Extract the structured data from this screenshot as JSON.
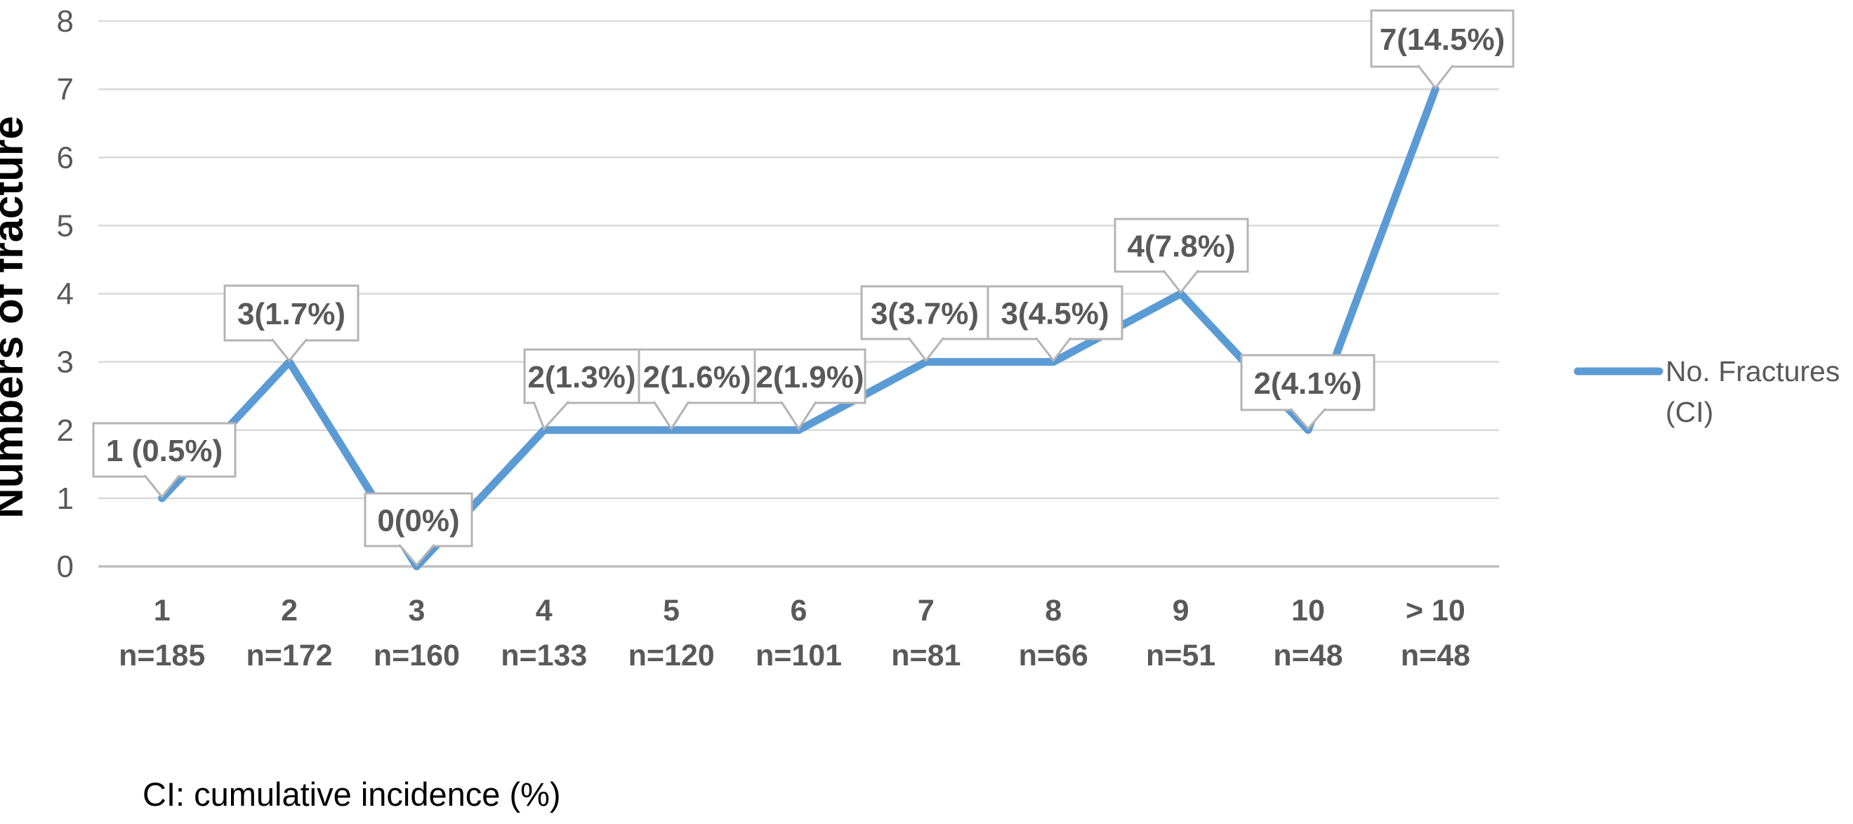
{
  "footnote": "CI: cumulative incidence (%)",
  "chart_data": {
    "type": "line",
    "title": "",
    "xlabel": "",
    "ylabel": "Numbers of fracture",
    "ylim": [
      0,
      8
    ],
    "yticks": [
      8,
      7,
      6,
      5,
      4,
      3,
      2,
      1,
      0
    ],
    "grid": true,
    "categories": [
      "1",
      "2",
      "3",
      "4",
      "5",
      "6",
      "7",
      "8",
      "9",
      "10",
      "> 10"
    ],
    "category_sublabels": [
      "n=185",
      "n=172",
      "n=160",
      "n=133",
      "n=120",
      "n=101",
      "n=81",
      "n=66",
      "n=51",
      "n=48",
      "n=48"
    ],
    "series": [
      {
        "name": "No. Fractures (CI)",
        "values": [
          1,
          3,
          0,
          2,
          2,
          2,
          3,
          3,
          4,
          2,
          7
        ]
      }
    ],
    "data_labels": [
      "1 (0.5%)",
      "3(1.7%)",
      "0(0%)",
      "2(1.3%)",
      "2(1.6%)",
      "2(1.9%)",
      "3(3.7%)",
      "3(4.5%)",
      "4(7.8%)",
      "2(4.1%)",
      "7(14.5%)"
    ],
    "legend": {
      "position": "right",
      "line1": "No. Fractures",
      "line2": "(CI)"
    },
    "colors": {
      "line": "#5B9BD5",
      "gridline": "#D9D9D9",
      "axis_line": "#BFBFBF",
      "label_text": "#595959",
      "callout_border": "#B4B4B4",
      "callout_fill": "#FFFFFF"
    }
  }
}
